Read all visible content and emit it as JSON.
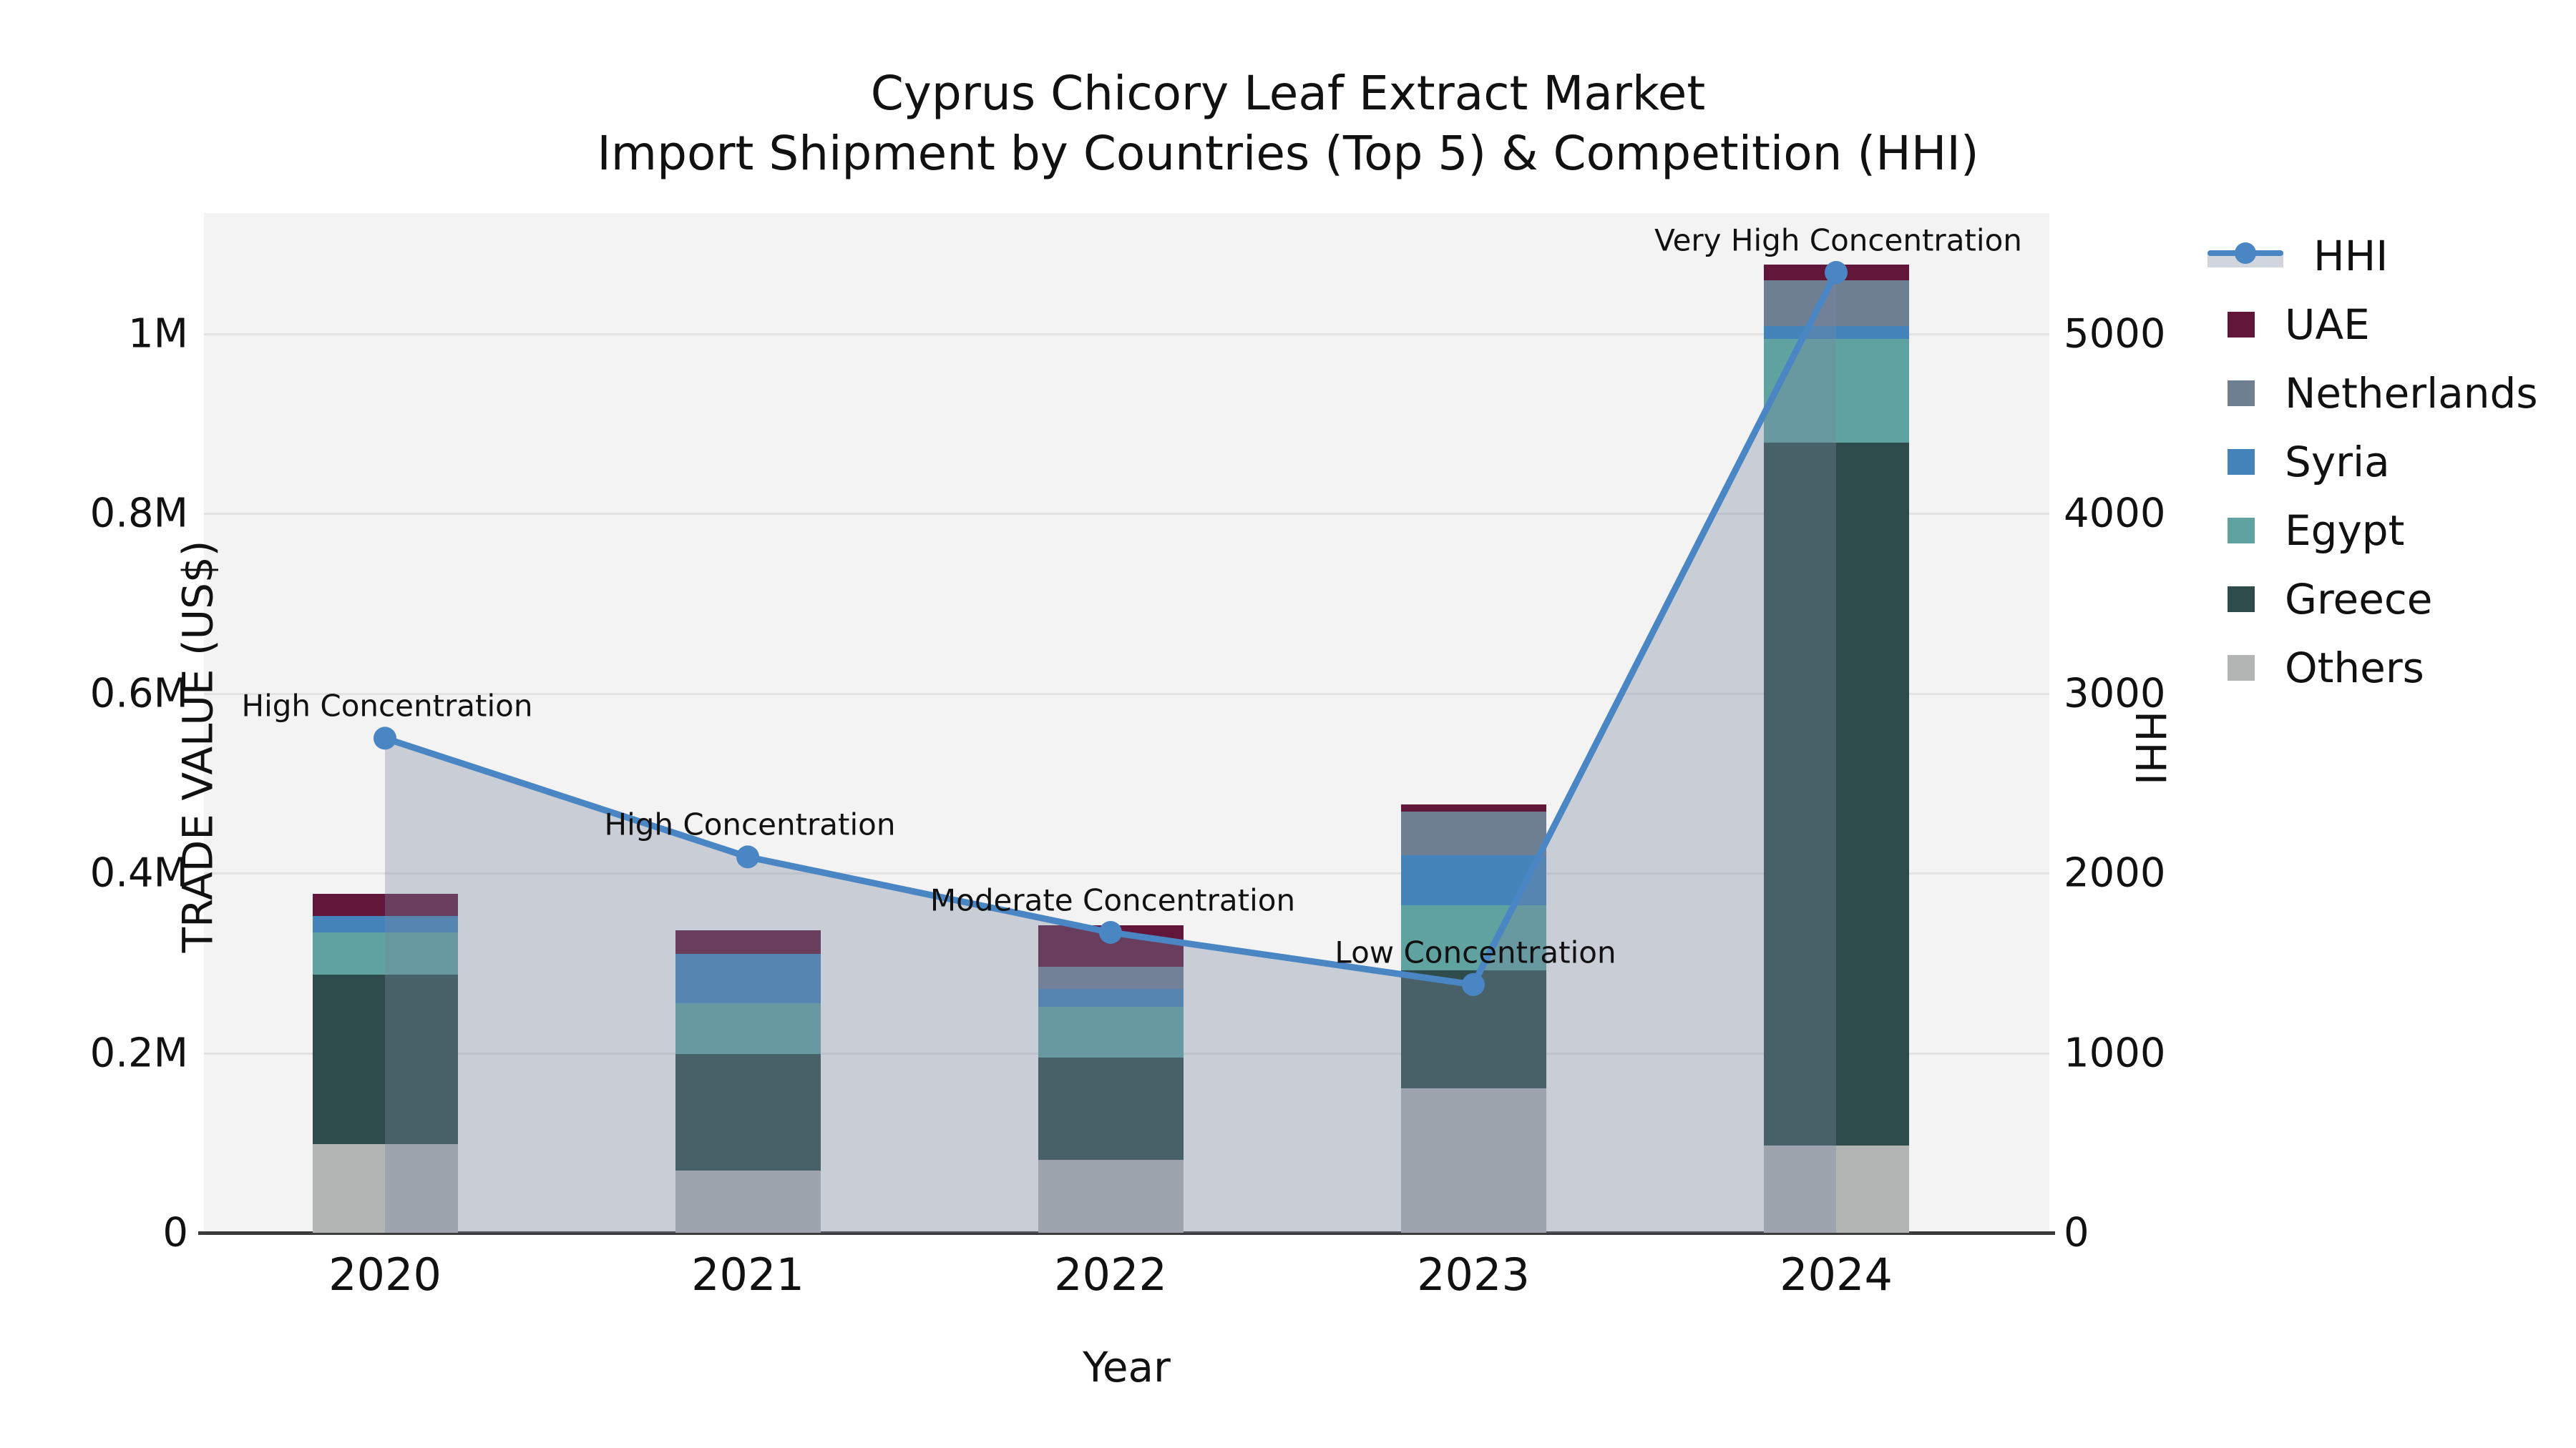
{
  "title": {
    "line1": "Cyprus Chicory Leaf Extract Market",
    "line2": "Import Shipment by Countries (Top 5) & Competition (HHI)"
  },
  "axes": {
    "x_label": "Year",
    "y_left_label": "TRADE VALUE (US$)",
    "y_right_label": "HHI"
  },
  "legend": {
    "items": [
      "HHI",
      "UAE",
      "Netherlands",
      "Syria",
      "Egypt",
      "Greece",
      "Others"
    ]
  },
  "chart_data": {
    "type": "combo: stacked bar (trade value) + line (HHI)",
    "categories": [
      "2020",
      "2021",
      "2022",
      "2023",
      "2024"
    ],
    "bar_unit": "US$ (M = million)",
    "series": [
      {
        "name": "UAE",
        "color": "#62163a",
        "values_usd_k": [
          25,
          26,
          46,
          8,
          18
        ]
      },
      {
        "name": "Netherlands",
        "color": "#6f7f92",
        "values_usd_k": [
          0,
          0,
          25,
          48,
          51
        ]
      },
      {
        "name": "Syria",
        "color": "#4484bb",
        "values_usd_k": [
          18,
          55,
          20,
          56,
          14
        ]
      },
      {
        "name": "Egypt",
        "color": "#60a2a0",
        "values_usd_k": [
          47,
          56,
          56,
          72,
          115
        ]
      },
      {
        "name": "Greece",
        "color": "#2e4c4b",
        "values_usd_k": [
          188,
          130,
          114,
          131,
          782
        ]
      },
      {
        "name": "Others",
        "color": "#b3b4b4",
        "values_usd_k": [
          99,
          69,
          81,
          161,
          97
        ]
      }
    ],
    "stack_order_bottom_to_top": [
      "Others",
      "Greece",
      "Egypt",
      "Syria",
      "Netherlands",
      "UAE"
    ],
    "bar_totals_usd_k": [
      377,
      336,
      342,
      476,
      1077
    ],
    "hhi_line": {
      "name": "HHI",
      "line_color": "#4a86c4",
      "area_fill_color": "rgba(120,135,160,0.35)",
      "values": [
        2750,
        2090,
        1670,
        1380,
        5340
      ]
    },
    "point_annotations": [
      "High Concentration",
      "High Concentration",
      "Moderate Concentration",
      "Low Concentration",
      "Very High Concentration"
    ],
    "y_left_axis": {
      "label": "TRADE VALUE (US$)",
      "tick_labels": [
        "0",
        "0.2M",
        "0.4M",
        "0.6M",
        "0.8M",
        "1M"
      ],
      "tick_values_usd_k": [
        0,
        200,
        400,
        600,
        800,
        1000
      ],
      "range_usd_k": [
        0,
        1134
      ]
    },
    "y_right_axis": {
      "label": "HHI",
      "tick_labels": [
        "0",
        "1000",
        "2000",
        "3000",
        "4000",
        "5000"
      ],
      "tick_values": [
        0,
        1000,
        2000,
        3000,
        4000,
        5000
      ],
      "range": [
        0,
        5670
      ]
    },
    "x_axis": {
      "label": "Year"
    },
    "grid": "horizontal gridlines at left-axis ticks",
    "legend_position": "right side, outside plot"
  }
}
